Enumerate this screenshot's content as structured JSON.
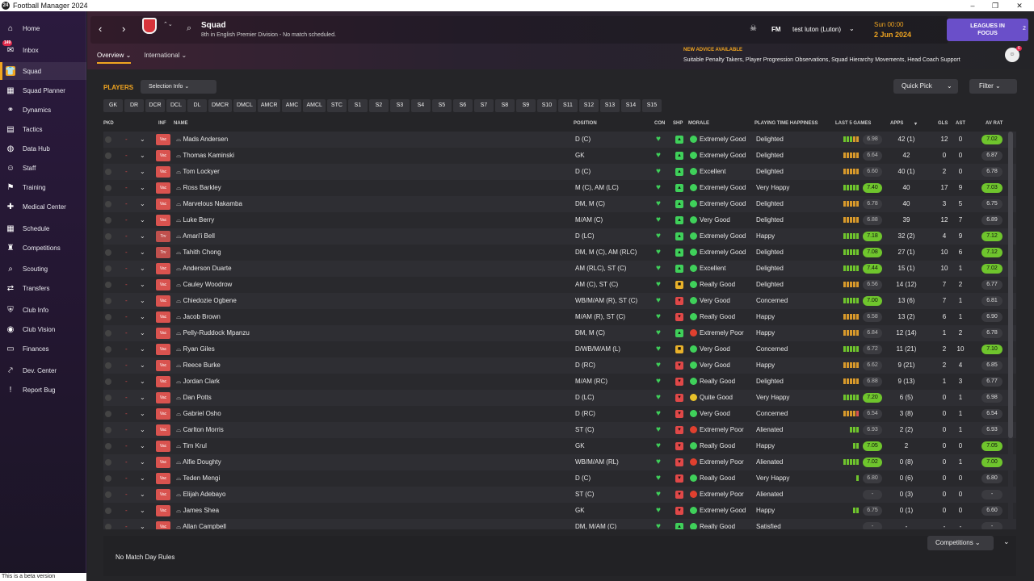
{
  "window": {
    "title": "Football Manager 2024",
    "minimize": "–",
    "maximize": "❐",
    "close": "✕"
  },
  "sidebar": {
    "items": [
      {
        "label": "Home",
        "icon": "⌂"
      },
      {
        "label": "Inbox",
        "icon": "✉",
        "badge": "149"
      },
      {
        "label": "Squad",
        "icon": "👕"
      },
      {
        "label": "Squad Planner",
        "icon": "▦"
      },
      {
        "label": "Dynamics",
        "icon": "⚭"
      },
      {
        "label": "Tactics",
        "icon": "▤"
      },
      {
        "label": "Data Hub",
        "icon": "◍"
      },
      {
        "label": "Staff",
        "icon": "☺"
      },
      {
        "label": "Training",
        "icon": "⚑"
      },
      {
        "label": "Medical Center",
        "icon": "✚"
      },
      {
        "label": "Schedule",
        "icon": "▦"
      },
      {
        "label": "Competitions",
        "icon": "♜"
      },
      {
        "label": "Scouting",
        "icon": "⌕"
      },
      {
        "label": "Transfers",
        "icon": "⇄"
      },
      {
        "label": "Club Info",
        "icon": "⛨"
      },
      {
        "label": "Club Vision",
        "icon": "◉"
      },
      {
        "label": "Finances",
        "icon": "▭"
      },
      {
        "label": "Dev. Center",
        "icon": "⤤"
      },
      {
        "label": "Report Bug",
        "icon": "!"
      }
    ],
    "beta": "This is a beta version"
  },
  "header": {
    "title": "Squad",
    "subtitle": "8th in English Premier Division - No match scheduled.",
    "fm": "FM",
    "user": "test luton (Luton)",
    "time": "Sun 00:00",
    "date": "2 Jun 2024",
    "lif_line1": "LEAGUES IN",
    "lif_line2": "FOCUS",
    "lif_count": "2",
    "tabs": [
      "Overview ⌄",
      "International ⌄"
    ],
    "advice_head": "NEW ADVICE AVAILABLE",
    "advice": "Suitable Penalty Takers, Player Progression Observations, Squad Hierarchy Movements, Head Coach Support",
    "avatar_badge": "6"
  },
  "toolbar": {
    "players": "PLAYERS",
    "selection_info": "Selection Info ⌄",
    "quick_pick": "Quick Pick",
    "quick_pick_chev": "⌄",
    "filter": "Filter ⌄"
  },
  "positions": [
    "GK",
    "DR",
    "DCR",
    "DCL",
    "DL",
    "DMCR",
    "DMCL",
    "AMCR",
    "AMC",
    "AMCL",
    "STC",
    "S1",
    "S2",
    "S3",
    "S4",
    "S5",
    "S6",
    "S7",
    "S8",
    "S9",
    "S10",
    "S11",
    "S12",
    "S13",
    "S14",
    "S15"
  ],
  "columns": {
    "pkd": "PKD",
    "inf": "INF",
    "name": "NAME",
    "position": "POSITION",
    "con": "CON",
    "shp": "SHP",
    "morale": "MORALE",
    "pth": "PLAYING TIME HAPPINESS",
    "last5": "LAST 5 GAMES",
    "apps": "APPS",
    "sort": "▾",
    "gls": "GLS",
    "ast": "AST",
    "avrat": "AV RAT"
  },
  "colors": {
    "accent": "#f1a520",
    "green": "#6fc52d",
    "red": "#d9534f",
    "purple": "#6a4fc9"
  },
  "players": [
    {
      "name": "Mads Andersen",
      "inf": "Vac",
      "pos": "D (C)",
      "shp": "g",
      "morale": "Extremely Good",
      "mc": "#3fd05a",
      "pth": "Delighted",
      "form": "gggoo",
      "frat": "6.98",
      "fhi": false,
      "apps": "42 (1)",
      "gls": "12",
      "ast": "0",
      "av": "7.02",
      "avhi": true
    },
    {
      "name": "Thomas Kaminski",
      "inf": "Vac",
      "pos": "GK",
      "shp": "g",
      "morale": "Extremely Good",
      "mc": "#3fd05a",
      "pth": "Delighted",
      "form": "ooooo",
      "frat": "6.64",
      "fhi": false,
      "apps": "42",
      "gls": "0",
      "ast": "0",
      "av": "6.87",
      "avhi": false
    },
    {
      "name": "Tom Lockyer",
      "inf": "Vac",
      "pos": "D (C)",
      "shp": "g",
      "morale": "Excellent",
      "mc": "#3fd05a",
      "pth": "Delighted",
      "form": "ooooo",
      "frat": "6.60",
      "fhi": false,
      "apps": "40 (1)",
      "gls": "2",
      "ast": "0",
      "av": "6.78",
      "avhi": false
    },
    {
      "name": "Ross Barkley",
      "inf": "Vac",
      "pos": "M (C), AM (LC)",
      "shp": "g",
      "morale": "Extremely Good",
      "mc": "#3fd05a",
      "pth": "Very Happy",
      "form": "ggggg",
      "frat": "7.40",
      "fhi": true,
      "apps": "40",
      "gls": "17",
      "ast": "9",
      "av": "7.03",
      "avhi": true
    },
    {
      "name": "Marvelous Nakamba",
      "inf": "Vac",
      "pos": "DM, M (C)",
      "shp": "g",
      "morale": "Extremely Good",
      "mc": "#3fd05a",
      "pth": "Delighted",
      "form": "ooooo",
      "frat": "6.78",
      "fhi": false,
      "apps": "40",
      "gls": "3",
      "ast": "5",
      "av": "6.75",
      "avhi": false
    },
    {
      "name": "Luke Berry",
      "inf": "Vac",
      "pos": "M/AM (C)",
      "shp": "g",
      "morale": "Very Good",
      "mc": "#3fd05a",
      "pth": "Delighted",
      "form": "ooooo",
      "frat": "6.88",
      "fhi": false,
      "apps": "39",
      "gls": "12",
      "ast": "7",
      "av": "6.89",
      "avhi": false
    },
    {
      "name": "Amari'i Bell",
      "inf": "Trv",
      "pos": "D (LC)",
      "shp": "g",
      "morale": "Extremely Good",
      "mc": "#3fd05a",
      "pth": "Happy",
      "form": "ggggg",
      "frat": "7.18",
      "fhi": true,
      "apps": "32 (2)",
      "gls": "4",
      "ast": "9",
      "av": "7.12",
      "avhi": true
    },
    {
      "name": "Tahith Chong",
      "inf": "Trv",
      "pos": "DM, M (C), AM (RLC)",
      "shp": "g",
      "morale": "Extremely Good",
      "mc": "#3fd05a",
      "pth": "Delighted",
      "form": "ggggg",
      "frat": "7.08",
      "fhi": true,
      "apps": "27 (1)",
      "gls": "10",
      "ast": "6",
      "av": "7.12",
      "avhi": true
    },
    {
      "name": "Anderson Duarte",
      "inf": "Vac",
      "pos": "AM (RLC), ST (C)",
      "shp": "g",
      "morale": "Excellent",
      "mc": "#3fd05a",
      "pth": "Delighted",
      "form": "ggggg",
      "frat": "7.44",
      "fhi": true,
      "apps": "15 (1)",
      "gls": "10",
      "ast": "1",
      "av": "7.02",
      "avhi": true
    },
    {
      "name": "Cauley Woodrow",
      "inf": "Vac",
      "pos": "AM (C), ST (C)",
      "shp": "o",
      "morale": "Really Good",
      "mc": "#3fd05a",
      "pth": "Delighted",
      "form": "ooooo",
      "frat": "6.56",
      "fhi": false,
      "apps": "14 (12)",
      "gls": "7",
      "ast": "2",
      "av": "6.77",
      "avhi": false
    },
    {
      "name": "Chiedozie Ogbene",
      "inf": "Vac",
      "pos": "WB/M/AM (R), ST (C)",
      "shp": "r",
      "morale": "Very Good",
      "mc": "#3fd05a",
      "pth": "Concerned",
      "form": "ggggg",
      "frat": "7.00",
      "fhi": true,
      "apps": "13 (6)",
      "gls": "7",
      "ast": "1",
      "av": "6.81",
      "avhi": false
    },
    {
      "name": "Jacob Brown",
      "inf": "Vac",
      "pos": "M/AM (R), ST (C)",
      "shp": "r",
      "morale": "Really Good",
      "mc": "#3fd05a",
      "pth": "Happy",
      "form": "ooooo",
      "frat": "6.58",
      "fhi": false,
      "apps": "13 (2)",
      "gls": "6",
      "ast": "1",
      "av": "6.90",
      "avhi": false
    },
    {
      "name": "Pelly-Ruddock Mpanzu",
      "inf": "Vac",
      "pos": "DM, M (C)",
      "shp": "g",
      "morale": "Extremely Poor",
      "mc": "#e0402f",
      "pth": "Happy",
      "form": "ooooo",
      "frat": "6.84",
      "fhi": false,
      "apps": "12 (14)",
      "gls": "1",
      "ast": "2",
      "av": "6.78",
      "avhi": false
    },
    {
      "name": "Ryan Giles",
      "inf": "Vac",
      "pos": "D/WB/M/AM (L)",
      "shp": "o",
      "morale": "Very Good",
      "mc": "#3fd05a",
      "pth": "Concerned",
      "form": "ggggg",
      "frat": "6.72",
      "fhi": false,
      "apps": "11 (21)",
      "gls": "2",
      "ast": "10",
      "av": "7.10",
      "avhi": true
    },
    {
      "name": "Reece Burke",
      "inf": "Vac",
      "pos": "D (RC)",
      "shp": "r",
      "morale": "Very Good",
      "mc": "#3fd05a",
      "pth": "Happy",
      "form": "ooooo",
      "frat": "6.62",
      "fhi": false,
      "apps": "9 (21)",
      "gls": "2",
      "ast": "4",
      "av": "6.85",
      "avhi": false
    },
    {
      "name": "Jordan Clark",
      "inf": "Vac",
      "pos": "M/AM (RC)",
      "shp": "r",
      "morale": "Really Good",
      "mc": "#3fd05a",
      "pth": "Delighted",
      "form": "ooooo",
      "frat": "6.88",
      "fhi": false,
      "apps": "9 (13)",
      "gls": "1",
      "ast": "3",
      "av": "6.77",
      "avhi": false
    },
    {
      "name": "Dan Potts",
      "inf": "Vac",
      "pos": "D (LC)",
      "shp": "r",
      "morale": "Quite Good",
      "mc": "#e8c12a",
      "pth": "Very Happy",
      "form": "ggggg",
      "frat": "7.20",
      "fhi": true,
      "apps": "6 (5)",
      "gls": "0",
      "ast": "1",
      "av": "6.98",
      "avhi": false
    },
    {
      "name": "Gabriel Osho",
      "inf": "Vac",
      "pos": "D (RC)",
      "shp": "r",
      "morale": "Very Good",
      "mc": "#3fd05a",
      "pth": "Concerned",
      "form": "oooor",
      "frat": "6.54",
      "fhi": false,
      "apps": "3 (8)",
      "gls": "0",
      "ast": "1",
      "av": "6.54",
      "avhi": false
    },
    {
      "name": "Carlton Morris",
      "inf": "Vac",
      "pos": "ST (C)",
      "shp": "r",
      "morale": "Extremely Poor",
      "mc": "#e0402f",
      "pth": "Alienated",
      "form": "ggg",
      "frat": "6.93",
      "fhi": false,
      "apps": "2 (2)",
      "gls": "0",
      "ast": "1",
      "av": "6.93",
      "avhi": false
    },
    {
      "name": "Tim Krul",
      "inf": "Vac",
      "pos": "GK",
      "shp": "r",
      "morale": "Really Good",
      "mc": "#3fd05a",
      "pth": "Happy",
      "form": "gg",
      "frat": "7.05",
      "fhi": true,
      "apps": "2",
      "gls": "0",
      "ast": "0",
      "av": "7.05",
      "avhi": true
    },
    {
      "name": "Alfie Doughty",
      "inf": "Vac",
      "pos": "WB/M/AM (RL)",
      "shp": "r",
      "morale": "Extremely Poor",
      "mc": "#e0402f",
      "pth": "Alienated",
      "form": "ggggg",
      "frat": "7.02",
      "fhi": true,
      "apps": "0 (8)",
      "gls": "0",
      "ast": "1",
      "av": "7.00",
      "avhi": true
    },
    {
      "name": "Teden Mengi",
      "inf": "Vac",
      "pos": "D (C)",
      "shp": "r",
      "morale": "Really Good",
      "mc": "#3fd05a",
      "pth": "Very Happy",
      "form": "g",
      "frat": "6.80",
      "fhi": false,
      "apps": "0 (6)",
      "gls": "0",
      "ast": "0",
      "av": "6.80",
      "avhi": false
    },
    {
      "name": "Elijah Adebayo",
      "inf": "Vac",
      "pos": "ST (C)",
      "shp": "r",
      "morale": "Extremely Poor",
      "mc": "#e0402f",
      "pth": "Alienated",
      "form": "",
      "frat": "-",
      "fhi": false,
      "apps": "0 (3)",
      "gls": "0",
      "ast": "0",
      "av": "-",
      "avhi": false
    },
    {
      "name": "James Shea",
      "inf": "Vac",
      "pos": "GK",
      "shp": "r",
      "morale": "Extremely Good",
      "mc": "#3fd05a",
      "pth": "Happy",
      "form": "gg",
      "frat": "6.75",
      "fhi": false,
      "apps": "0 (1)",
      "gls": "0",
      "ast": "0",
      "av": "6.60",
      "avhi": false
    },
    {
      "name": "Allan Campbell",
      "inf": "Vac",
      "pos": "DM, M/AM (C)",
      "shp": "g",
      "morale": "Really Good",
      "mc": "#3fd05a",
      "pth": "Satisfied",
      "form": "",
      "frat": "-",
      "fhi": false,
      "apps": "-",
      "gls": "-",
      "ast": "-",
      "av": "-",
      "avhi": false
    }
  ],
  "footer": {
    "match_day_rules": "No Match Day Rules",
    "competitions": "Competitions ⌄",
    "expand": "⌄"
  }
}
